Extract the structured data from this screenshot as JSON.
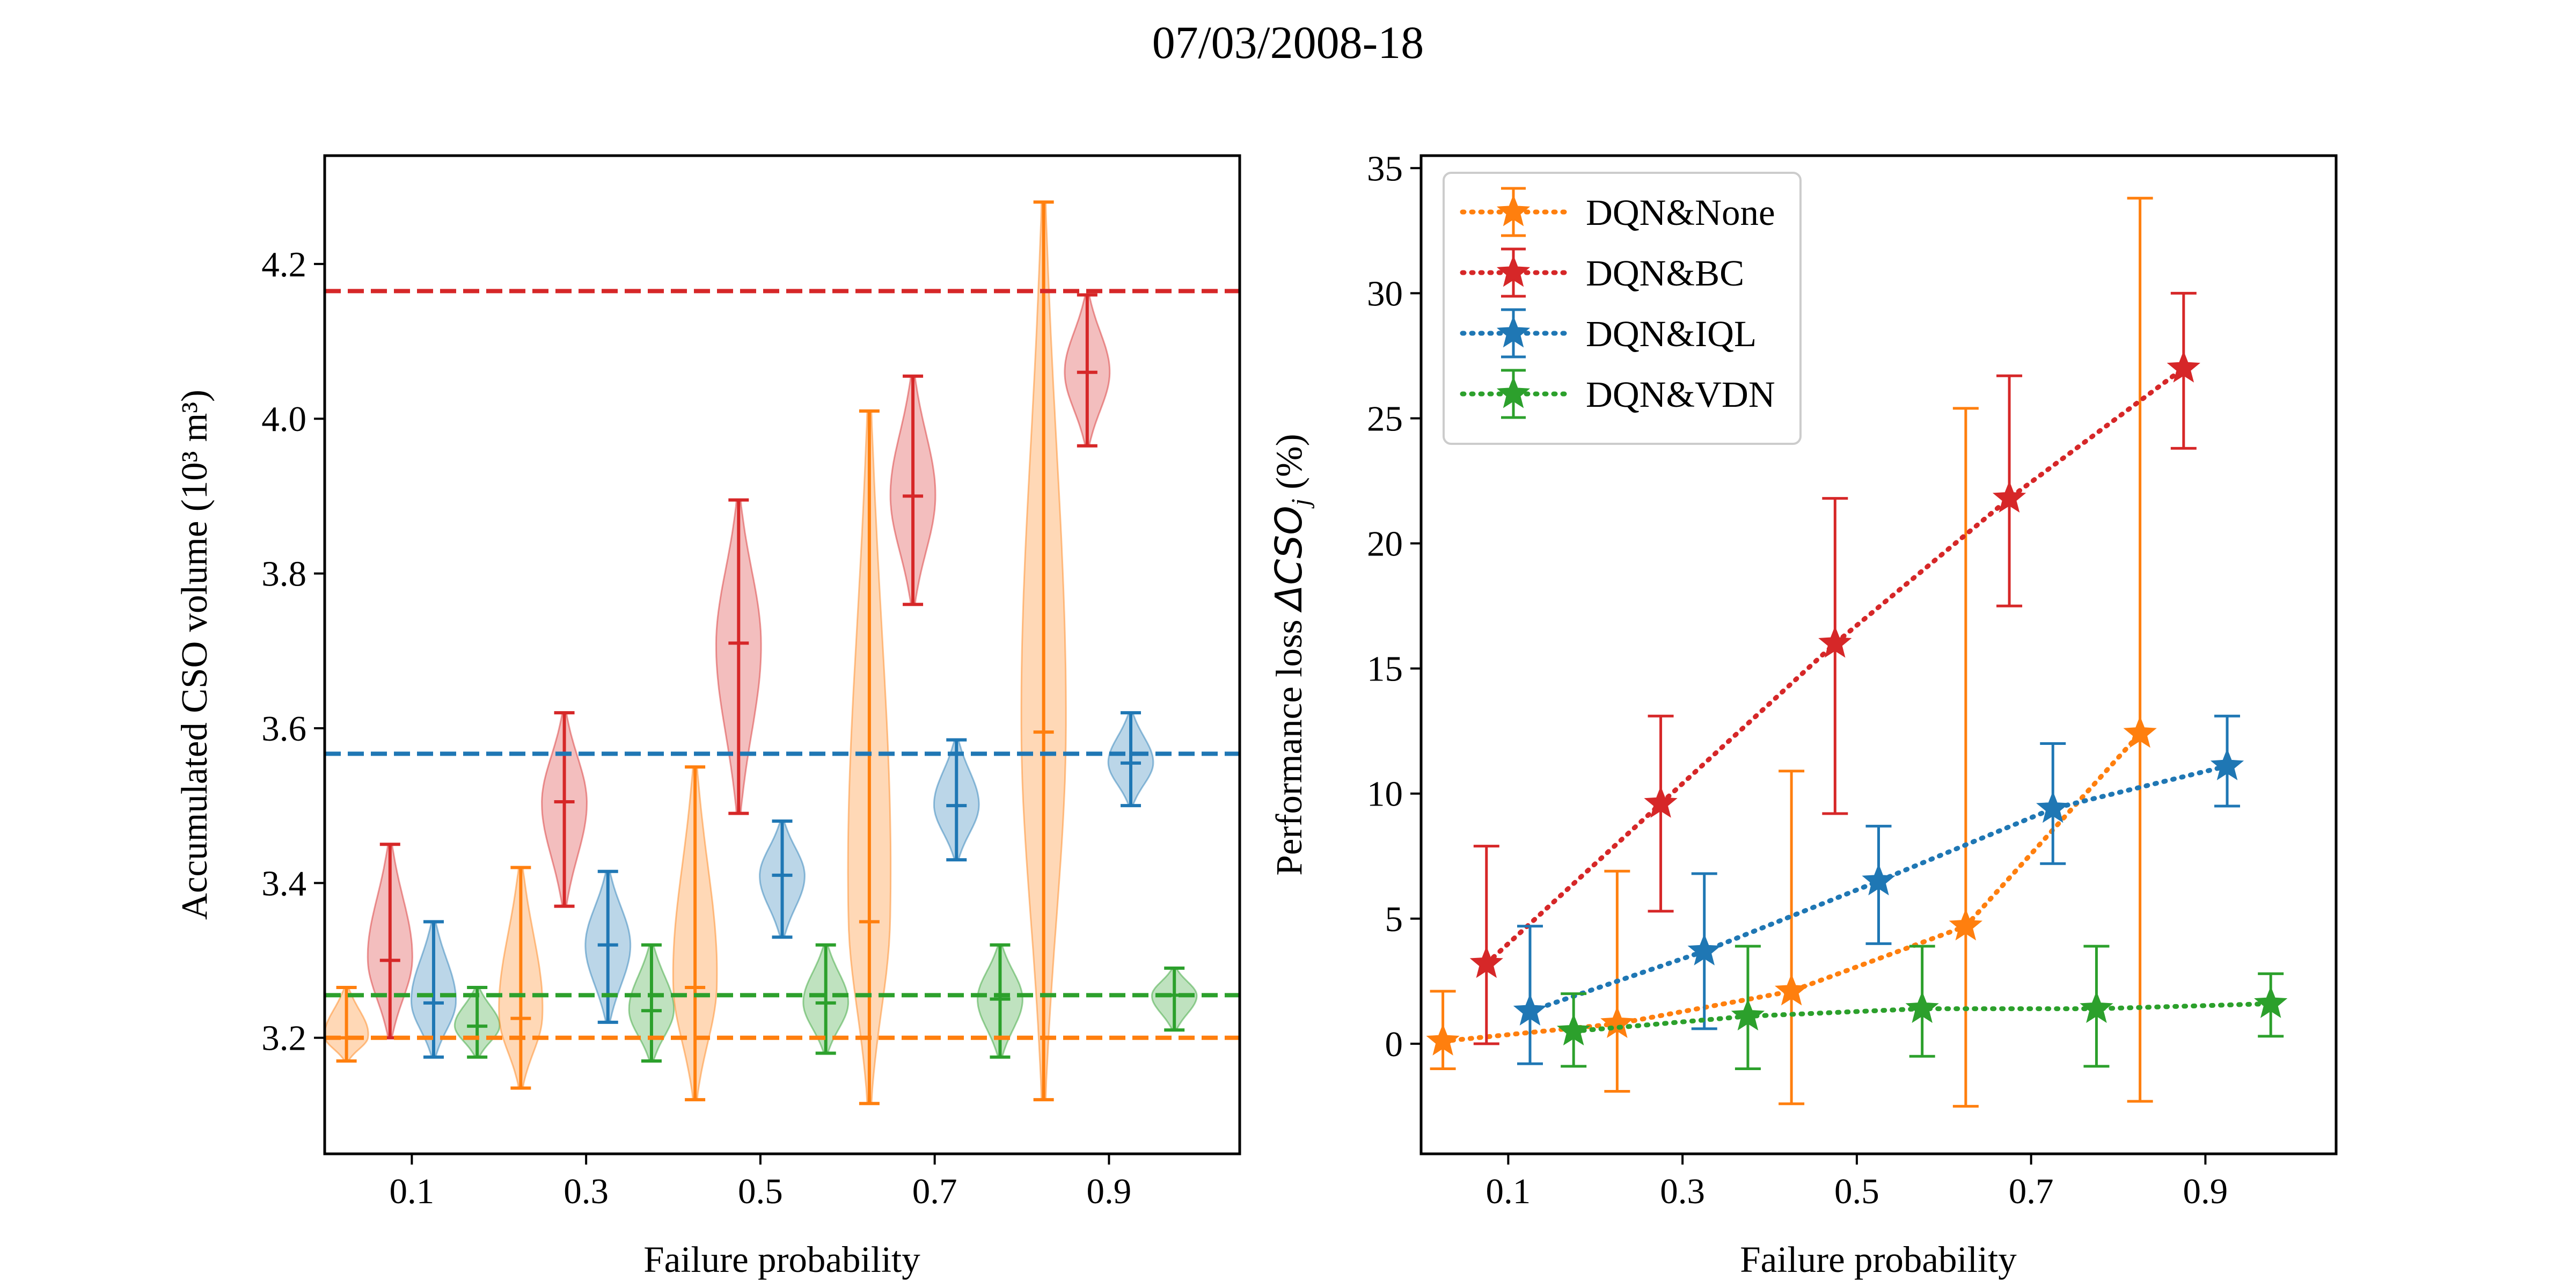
{
  "figure": {
    "title": "07/03/2008-18"
  },
  "colors": {
    "DQN&None": "#ff7f0e",
    "DQN&BC": "#d62728",
    "DQN&IQL": "#1f77b4",
    "DQN&VDN": "#2ca02c"
  },
  "chart_data": [
    {
      "type": "violin",
      "xlabel": "Failure probability",
      "ylabel": "Accumulated CSO volume (10³ m³)",
      "x_ticks": [
        "0.1",
        "0.3",
        "0.5",
        "0.7",
        "0.9"
      ],
      "y_ticks": [
        "3.2",
        "3.4",
        "3.6",
        "3.8",
        "4.0",
        "4.2"
      ],
      "xlim": [
        0,
        1.05
      ],
      "ylim": [
        3.05,
        4.34
      ],
      "grid": false,
      "reference_lines": [
        {
          "series": "DQN&BC",
          "y": 4.165
        },
        {
          "series": "DQN&IQL",
          "y": 3.567
        },
        {
          "series": "DQN&VDN",
          "y": 3.255
        },
        {
          "series": "DQN&None",
          "y": 3.2
        }
      ],
      "violins": [
        {
          "series": "DQN&None",
          "x": 0.025,
          "min": 3.17,
          "median": 3.2,
          "max": 3.265
        },
        {
          "series": "DQN&BC",
          "x": 0.075,
          "min": 3.2,
          "median": 3.3,
          "max": 3.45
        },
        {
          "series": "DQN&IQL",
          "x": 0.125,
          "min": 3.175,
          "median": 3.245,
          "max": 3.35
        },
        {
          "series": "DQN&VDN",
          "x": 0.175,
          "min": 3.175,
          "median": 3.215,
          "max": 3.265
        },
        {
          "series": "DQN&None",
          "x": 0.225,
          "min": 3.135,
          "median": 3.225,
          "max": 3.42
        },
        {
          "series": "DQN&BC",
          "x": 0.275,
          "min": 3.37,
          "median": 3.505,
          "max": 3.62
        },
        {
          "series": "DQN&IQL",
          "x": 0.325,
          "min": 3.22,
          "median": 3.32,
          "max": 3.415
        },
        {
          "series": "DQN&VDN",
          "x": 0.375,
          "min": 3.17,
          "median": 3.235,
          "max": 3.32
        },
        {
          "series": "DQN&None",
          "x": 0.425,
          "min": 3.12,
          "median": 3.265,
          "max": 3.55
        },
        {
          "series": "DQN&BC",
          "x": 0.475,
          "min": 3.49,
          "median": 3.71,
          "max": 3.895
        },
        {
          "series": "DQN&IQL",
          "x": 0.525,
          "min": 3.33,
          "median": 3.41,
          "max": 3.48
        },
        {
          "series": "DQN&VDN",
          "x": 0.575,
          "min": 3.18,
          "median": 3.245,
          "max": 3.32
        },
        {
          "series": "DQN&None",
          "x": 0.625,
          "min": 3.115,
          "median": 3.35,
          "max": 4.01
        },
        {
          "series": "DQN&BC",
          "x": 0.675,
          "min": 3.76,
          "median": 3.9,
          "max": 4.055
        },
        {
          "series": "DQN&IQL",
          "x": 0.725,
          "min": 3.43,
          "median": 3.5,
          "max": 3.585
        },
        {
          "series": "DQN&VDN",
          "x": 0.775,
          "min": 3.175,
          "median": 3.25,
          "max": 3.32
        },
        {
          "series": "DQN&None",
          "x": 0.825,
          "min": 3.12,
          "median": 3.595,
          "max": 4.28
        },
        {
          "series": "DQN&BC",
          "x": 0.875,
          "min": 3.965,
          "median": 4.06,
          "max": 4.16
        },
        {
          "series": "DQN&IQL",
          "x": 0.925,
          "min": 3.5,
          "median": 3.555,
          "max": 3.62
        },
        {
          "series": "DQN&VDN",
          "x": 0.975,
          "min": 3.21,
          "median": 3.255,
          "max": 3.29
        }
      ]
    },
    {
      "type": "line",
      "xlabel": "Failure probability",
      "ylabel_prefix": "Performance loss ",
      "ylabel_symbol": "ΔCSO",
      "ylabel_subscript": "j",
      "ylabel_suffix": " (%)",
      "x_ticks": [
        "0.1",
        "0.3",
        "0.5",
        "0.7",
        "0.9"
      ],
      "y_ticks": [
        "0",
        "5",
        "10",
        "15",
        "20",
        "25",
        "30",
        "35"
      ],
      "xlim": [
        0,
        1.05
      ],
      "ylim": [
        -4.4,
        35.5
      ],
      "grid": false,
      "legend": "top-left",
      "series": [
        {
          "name": "DQN&None",
          "x": [
            0.025,
            0.225,
            0.425,
            0.625,
            0.825
          ],
          "y": [
            0.1,
            0.8,
            2.1,
            4.7,
            12.4
          ],
          "err_low": [
            -1.0,
            -1.9,
            -2.4,
            -2.5,
            -2.3
          ],
          "err_high": [
            2.1,
            6.9,
            10.9,
            25.4,
            33.8
          ]
        },
        {
          "name": "DQN&BC",
          "x": [
            0.075,
            0.275,
            0.475,
            0.675,
            0.875
          ],
          "y": [
            3.2,
            9.6,
            16.0,
            21.8,
            27.0
          ],
          "err_low": [
            0.0,
            5.3,
            9.2,
            17.5,
            23.8
          ],
          "err_high": [
            7.9,
            13.1,
            21.8,
            26.7,
            30.0
          ]
        },
        {
          "name": "DQN&IQL",
          "x": [
            0.125,
            0.325,
            0.525,
            0.725,
            0.925
          ],
          "y": [
            1.3,
            3.7,
            6.5,
            9.4,
            11.1
          ],
          "err_low": [
            -0.8,
            0.6,
            4.0,
            7.2,
            9.5
          ],
          "err_high": [
            4.7,
            6.8,
            8.7,
            12.0,
            13.1
          ]
        },
        {
          "name": "DQN&VDN",
          "x": [
            0.175,
            0.375,
            0.575,
            0.775,
            0.975
          ],
          "y": [
            0.5,
            1.1,
            1.4,
            1.4,
            1.6
          ],
          "err_low": [
            -0.9,
            -1.0,
            -0.5,
            -0.9,
            0.3
          ],
          "err_high": [
            2.0,
            3.9,
            3.9,
            3.9,
            2.8
          ]
        }
      ]
    }
  ]
}
